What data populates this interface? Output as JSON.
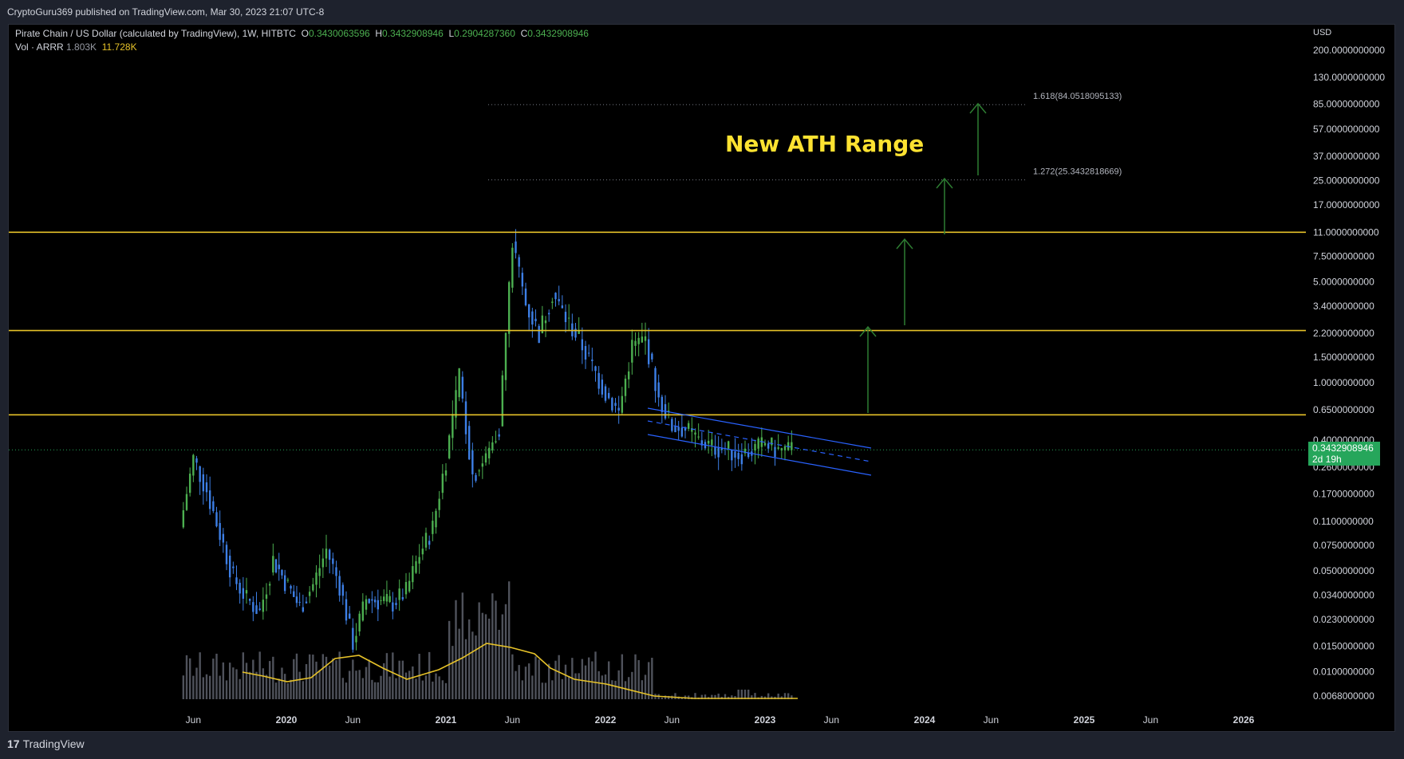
{
  "header": {
    "published": "CryptoGuru369 published on TradingView.com, Mar 30, 2023 21:07 UTC-8"
  },
  "legend": {
    "symbol": "Pirate Chain / US Dollar (calculated by TradingView), 1W, HITBTC",
    "o_label": "O",
    "o": "0.3430063596",
    "h_label": "H",
    "h": "0.3432908946",
    "l_label": "L",
    "l": "0.2904287360",
    "c_label": "C",
    "c": "0.3432908946",
    "vol_label": "Vol · ARRR",
    "vol1": "1.803K",
    "vol2": "11.728K"
  },
  "annotation": {
    "title": "New ATH Range"
  },
  "price_badge": {
    "price": "0.3432908946",
    "countdown": "2d 19h"
  },
  "footer": {
    "brand": "TradingView"
  },
  "colors": {
    "up": "#4caf50",
    "down": "#3d7fe6",
    "level": "#e6c229",
    "channel": "#2962ff",
    "arrow": "#2e7d32",
    "ma": "#e6c229",
    "volume": "#5d606b"
  },
  "chart_data": {
    "type": "candlestick",
    "y_scale": "log",
    "y_unit": "USD",
    "ylim": [
      0.0045,
      300
    ],
    "y_ticks": [
      "200.0000000000",
      "130.0000000000",
      "85.0000000000",
      "57.0000000000",
      "37.0000000000",
      "25.0000000000",
      "17.0000000000",
      "11.0000000000",
      "7.5000000000",
      "5.0000000000",
      "3.4000000000",
      "2.2000000000",
      "1.5000000000",
      "1.0000000000",
      "0.6500000000",
      "0.4000000000",
      "0.2600000000",
      "0.1700000000",
      "0.1100000000",
      "0.0750000000",
      "0.0500000000",
      "0.0340000000",
      "0.0230000000",
      "0.0150000000",
      "0.0100000000",
      "0.0068000000"
    ],
    "x_ticks": [
      "Jun",
      "2020",
      "Jun",
      "2021",
      "Jun",
      "2022",
      "Jun",
      "2023",
      "Jun",
      "2024",
      "Jun",
      "2025",
      "Jun",
      "2026"
    ],
    "horizontal_levels": [
      11.0,
      2.3,
      0.6
    ],
    "fib_levels": [
      {
        "label": "1.618(84.0518095133)",
        "value": 84.0518095133
      },
      {
        "label": "1.272(25.3432818669)",
        "value": 25.3432818669
      }
    ],
    "last_price": 0.3432908946,
    "price_path": [
      [
        "2019-05",
        0.1
      ],
      [
        "2019-06",
        0.3
      ],
      [
        "2019-07",
        0.18
      ],
      [
        "2019-08",
        0.09
      ],
      [
        "2019-09",
        0.045
      ],
      [
        "2019-10",
        0.032
      ],
      [
        "2019-11",
        0.026
      ],
      [
        "2019-12",
        0.06
      ],
      [
        "2020-02",
        0.028
      ],
      [
        "2020-03",
        0.04
      ],
      [
        "2020-04",
        0.07
      ],
      [
        "2020-05",
        0.04
      ],
      [
        "2020-06",
        0.016
      ],
      [
        "2020-07",
        0.032
      ],
      [
        "2020-09",
        0.03
      ],
      [
        "2020-10",
        0.036
      ],
      [
        "2020-11",
        0.065
      ],
      [
        "2020-12",
        0.1
      ],
      [
        "2021-01",
        0.3
      ],
      [
        "2021-02",
        1.1
      ],
      [
        "2021-03",
        0.23
      ],
      [
        "2021-04",
        0.3
      ],
      [
        "2021-05",
        0.5
      ],
      [
        "2021-06",
        9.5
      ],
      [
        "2021-07",
        3.5
      ],
      [
        "2021-08",
        2.2
      ],
      [
        "2021-09",
        4.2
      ],
      [
        "2021-10",
        2.8
      ],
      [
        "2021-11",
        2.0
      ],
      [
        "2021-12",
        1.3
      ],
      [
        "2022-01",
        0.85
      ],
      [
        "2022-02",
        0.62
      ],
      [
        "2022-03",
        1.8
      ],
      [
        "2022-04",
        2.0
      ],
      [
        "2022-05",
        0.8
      ],
      [
        "2022-06",
        0.5
      ],
      [
        "2022-07",
        0.48
      ],
      [
        "2022-08",
        0.4
      ],
      [
        "2022-09",
        0.36
      ],
      [
        "2022-10",
        0.35
      ],
      [
        "2022-11",
        0.32
      ],
      [
        "2022-12",
        0.34
      ],
      [
        "2023-01",
        0.38
      ],
      [
        "2023-02",
        0.34
      ],
      [
        "2023-03",
        0.3432908946
      ]
    ]
  }
}
